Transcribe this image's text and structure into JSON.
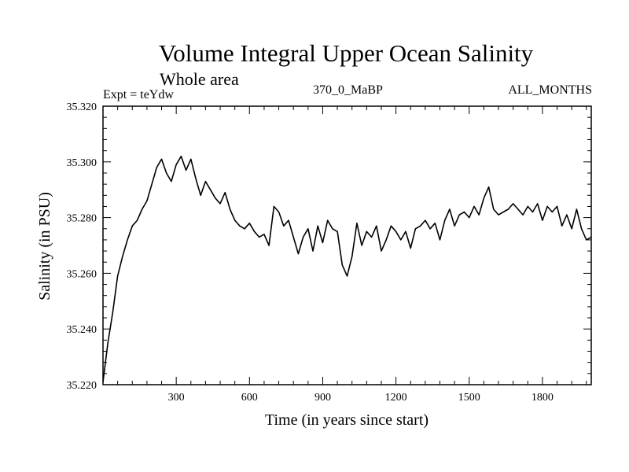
{
  "header": {
    "title": "Volume Integral Upper Ocean Salinity",
    "subtitle": "Whole area",
    "expt": "Expt = teYdw",
    "run": "370_0_MaBP",
    "months": "ALL_MONTHS"
  },
  "chart_data": {
    "type": "line",
    "title": "Volume Integral Upper Ocean Salinity",
    "subtitle": "Whole area",
    "xlabel": "Time (in years since start)",
    "ylabel": "Salinity (in PSU)",
    "xlim": [
      0,
      2000
    ],
    "ylim": [
      35.22,
      35.32
    ],
    "xticks": [
      "300",
      "600",
      "900",
      "1200",
      "1500",
      "1800"
    ],
    "yticks": [
      "35.220",
      "35.240",
      "35.260",
      "35.280",
      "35.300",
      "35.320"
    ],
    "grid": false,
    "series": [
      {
        "name": "teYdw",
        "x": [
          0,
          20,
          40,
          60,
          80,
          100,
          120,
          140,
          160,
          180,
          200,
          220,
          240,
          260,
          280,
          300,
          320,
          340,
          360,
          380,
          400,
          420,
          440,
          460,
          480,
          500,
          520,
          540,
          560,
          580,
          600,
          620,
          640,
          660,
          680,
          700,
          720,
          740,
          760,
          780,
          800,
          820,
          840,
          860,
          880,
          900,
          920,
          940,
          960,
          980,
          1000,
          1020,
          1040,
          1060,
          1080,
          1100,
          1120,
          1140,
          1160,
          1180,
          1200,
          1220,
          1240,
          1260,
          1280,
          1300,
          1320,
          1340,
          1360,
          1380,
          1400,
          1420,
          1440,
          1460,
          1480,
          1500,
          1520,
          1540,
          1560,
          1580,
          1600,
          1620,
          1640,
          1660,
          1680,
          1700,
          1720,
          1740,
          1760,
          1780,
          1800,
          1820,
          1840,
          1860,
          1880,
          1900,
          1920,
          1940,
          1960,
          1980,
          2000
        ],
        "y": [
          35.221,
          35.235,
          35.246,
          35.259,
          35.266,
          35.272,
          35.277,
          35.279,
          35.283,
          35.286,
          35.292,
          35.298,
          35.301,
          35.296,
          35.293,
          35.299,
          35.302,
          35.297,
          35.301,
          35.294,
          35.288,
          35.293,
          35.29,
          35.287,
          35.285,
          35.289,
          35.283,
          35.279,
          35.277,
          35.276,
          35.278,
          35.275,
          35.273,
          35.274,
          35.27,
          35.284,
          35.282,
          35.277,
          35.279,
          35.273,
          35.267,
          35.273,
          35.276,
          35.268,
          35.277,
          35.271,
          35.279,
          35.276,
          35.275,
          35.263,
          35.259,
          35.266,
          35.278,
          35.27,
          35.275,
          35.273,
          35.277,
          35.268,
          35.272,
          35.277,
          35.275,
          35.272,
          35.275,
          35.269,
          35.276,
          35.277,
          35.279,
          35.276,
          35.278,
          35.272,
          35.279,
          35.283,
          35.277,
          35.281,
          35.282,
          35.28,
          35.284,
          35.281,
          35.287,
          35.291,
          35.283,
          35.281,
          35.282,
          35.283,
          35.285,
          35.283,
          35.281,
          35.284,
          35.282,
          35.285,
          35.279,
          35.284,
          35.282,
          35.284,
          35.277,
          35.281,
          35.276,
          35.283,
          35.276,
          35.272,
          35.273
        ]
      }
    ]
  }
}
